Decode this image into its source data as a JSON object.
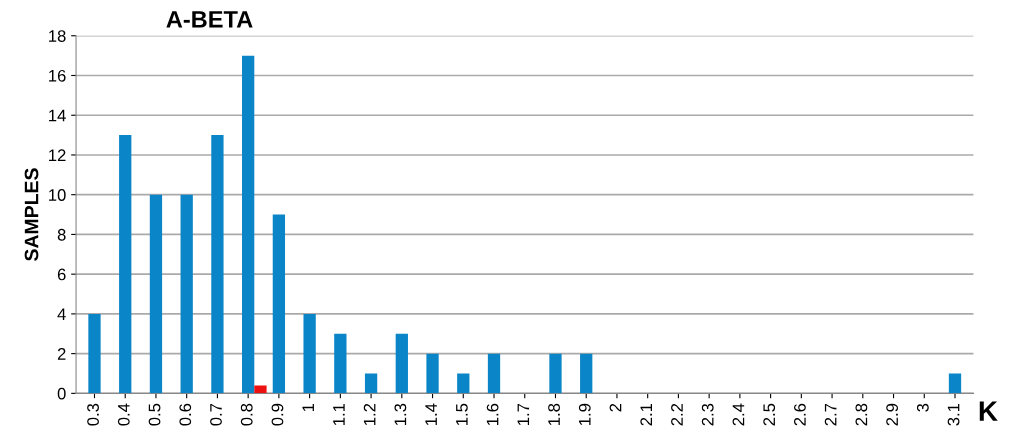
{
  "chart_data": {
    "type": "bar",
    "title": "A-BETA",
    "xlabel": "K",
    "ylabel": "SAMPLES",
    "categories": [
      "0.3",
      "0.4",
      "0.5",
      "0.6",
      "0.7",
      "0.8",
      "0.9",
      "1",
      "1.1",
      "1.2",
      "1.3",
      "1.4",
      "1.5",
      "1.6",
      "1.7",
      "1.8",
      "1.9",
      "2",
      "2.1",
      "2.2",
      "2.3",
      "2.4",
      "2.5",
      "2.6",
      "2.7",
      "2.8",
      "2.9",
      "3",
      "3.1"
    ],
    "series": [
      {
        "color": "#0a86c8",
        "values": [
          4,
          13,
          10,
          10,
          13,
          17,
          9,
          4,
          3,
          1,
          3,
          2,
          1,
          2,
          0,
          2,
          2,
          0,
          0,
          0,
          0,
          0,
          0,
          0,
          0,
          0,
          0,
          0,
          1
        ]
      },
      {
        "color": "#ee1111",
        "values": [
          null,
          null,
          null,
          null,
          null,
          0.4,
          null,
          null,
          null,
          null,
          null,
          null,
          null,
          null,
          null,
          null,
          null,
          null,
          null,
          null,
          null,
          null,
          null,
          null,
          null,
          null,
          null,
          null,
          null
        ]
      }
    ],
    "ylim": [
      0,
      18
    ],
    "yticks": [
      0,
      2,
      4,
      6,
      8,
      10,
      12,
      14,
      16,
      18
    ],
    "grid": "y"
  }
}
